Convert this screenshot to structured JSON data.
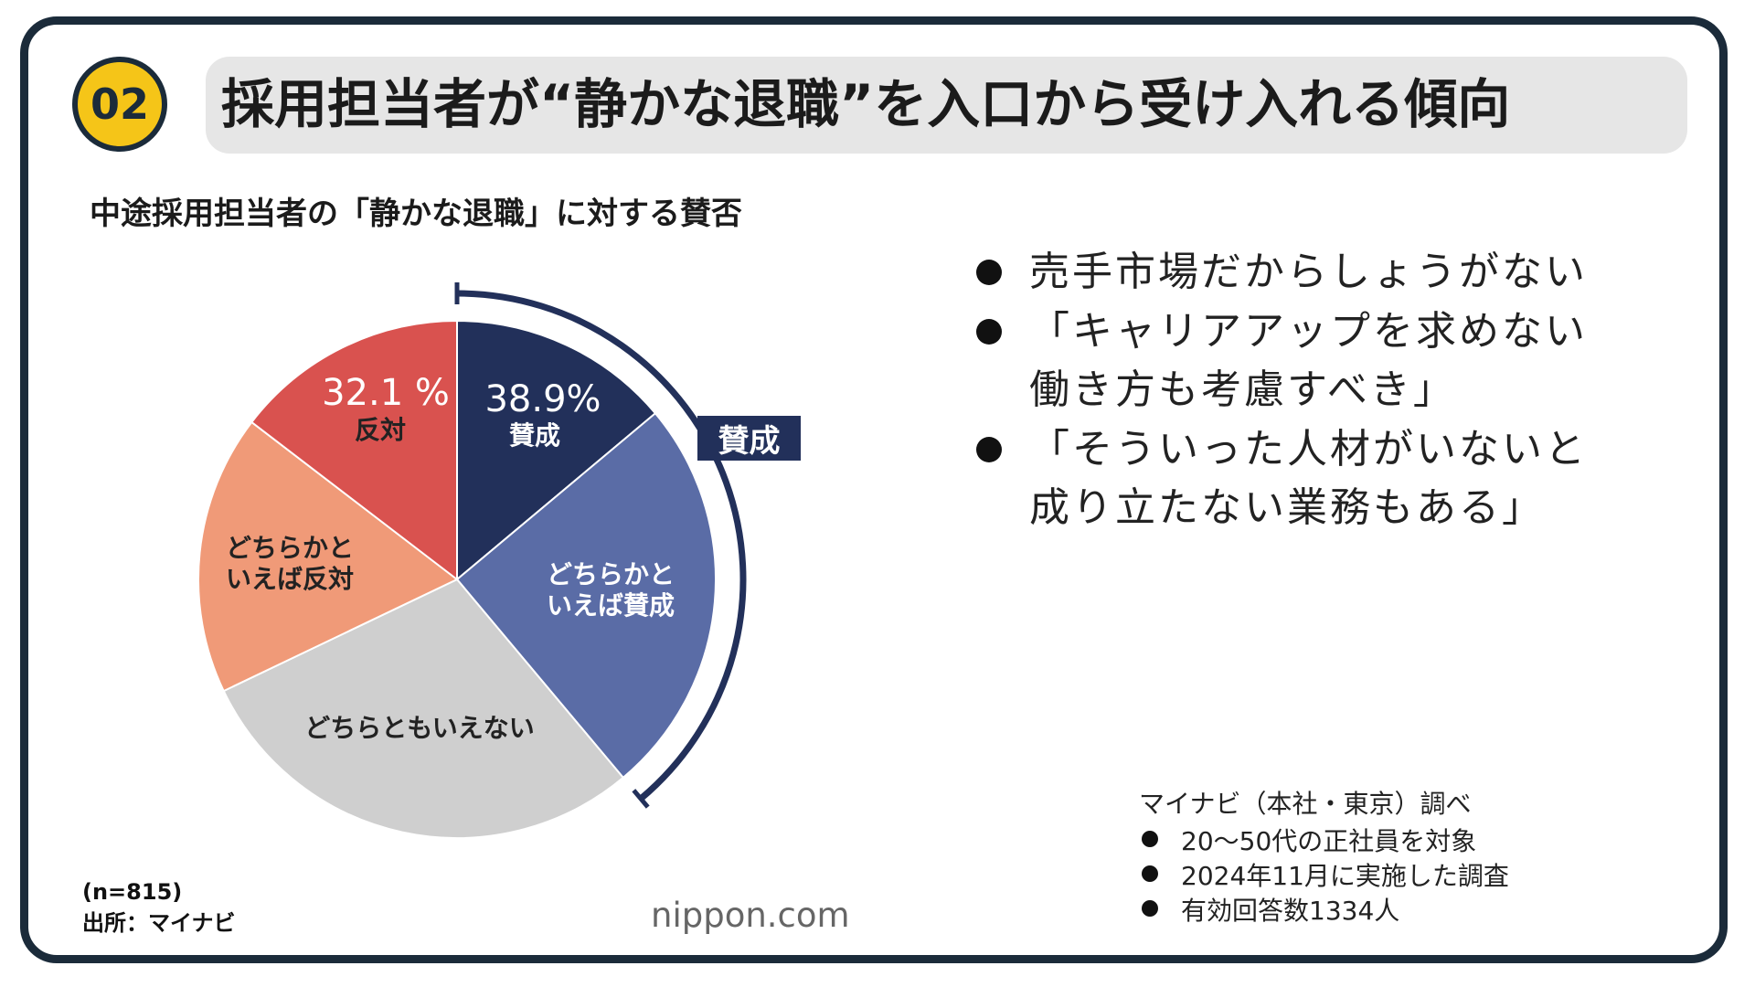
{
  "header": {
    "number": "02",
    "title": "採用担当者が“静かな退職”を入口から受け入れる傾向"
  },
  "chart_data": {
    "type": "pie",
    "title": "中途採用担当者の「静かな退職」に対する賛否",
    "categories": [
      "賛成",
      "どちらかと\nいえば賛成",
      "どちらともいえない",
      "どちらかと\nいえば反対",
      "反対"
    ],
    "values": [
      13.9,
      25,
      29,
      17.5,
      14.6
    ],
    "colors": [
      "#22305a",
      "#5a6ca6",
      "#cfcfcf",
      "#f09a78",
      "#d9524f"
    ],
    "groups": [
      {
        "name": "賛成",
        "value": 38.9,
        "label": "38.9%"
      },
      {
        "value": 32.1,
        "label": "32.1 %"
      }
    ],
    "note": "(n=815)",
    "source": "出所：マイナビ"
  },
  "comments": [
    "売手市場だからしょうがない",
    "「キャリアアップを求めない\n働き方も考慮すべき」",
    "「そういった人材がいないと\n成り立たない業務もある」"
  ],
  "survey": {
    "title": "マイナビ（本社・東京）調べ",
    "items": [
      "20～50代の正社員を対象",
      "2024年11月に実施した調査",
      "有効回答数1334人"
    ]
  },
  "logo": "nippon.com"
}
